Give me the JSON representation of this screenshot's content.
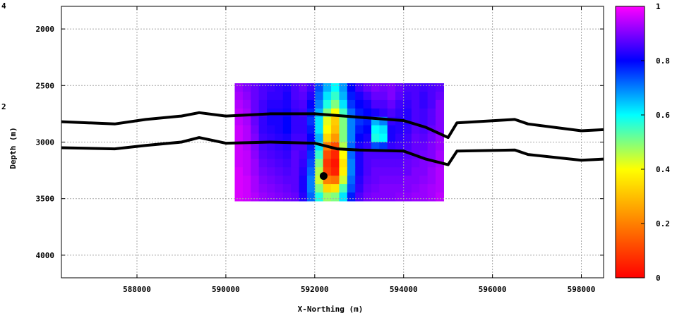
{
  "chart_data": {
    "type": "heatmap",
    "xlabel": "X-Northing (m)",
    "ylabel": "Depth (m)",
    "xlim": [
      586300,
      598500
    ],
    "ylim": [
      4200,
      1800
    ],
    "y_inverted": true,
    "x_ticks": [
      588000,
      590000,
      592000,
      594000,
      596000,
      598000
    ],
    "y_ticks": [
      2000,
      2500,
      3000,
      3500,
      4000
    ],
    "grid": true,
    "colorbar": {
      "min": 0,
      "max": 1,
      "ticks": [
        0,
        0.2,
        0.4,
        0.6,
        0.8,
        1
      ],
      "tick_labels": [
        "0",
        "0.2",
        "0.4",
        "0.6",
        "0.8",
        "1"
      ],
      "colors": [
        "#ff0000",
        "#ff8000",
        "#ffff00",
        "#00ffff",
        "#0000ff",
        "#ff00ff"
      ]
    },
    "left_edge_partial_labels": [
      "4",
      "2"
    ],
    "heatmap_extent": {
      "x": [
        590200,
        594900
      ],
      "y": [
        2480,
        3520
      ]
    },
    "heatmap_rows": [
      [
        0.92,
        0.9,
        0.88,
        0.86,
        0.85,
        0.84,
        0.83,
        0.86,
        0.88,
        0.85,
        0.74,
        0.66,
        0.6,
        0.68,
        0.8,
        0.85,
        0.88,
        0.9,
        0.89,
        0.9,
        0.88,
        0.86,
        0.86,
        0.85,
        0.86,
        0.87
      ],
      [
        0.93,
        0.91,
        0.88,
        0.86,
        0.84,
        0.84,
        0.82,
        0.86,
        0.87,
        0.83,
        0.72,
        0.62,
        0.56,
        0.66,
        0.78,
        0.82,
        0.85,
        0.88,
        0.88,
        0.9,
        0.87,
        0.85,
        0.86,
        0.84,
        0.86,
        0.88
      ],
      [
        0.94,
        0.92,
        0.88,
        0.85,
        0.83,
        0.83,
        0.82,
        0.85,
        0.86,
        0.8,
        0.7,
        0.58,
        0.5,
        0.62,
        0.76,
        0.8,
        0.82,
        0.86,
        0.86,
        0.88,
        0.85,
        0.84,
        0.86,
        0.84,
        0.86,
        0.9
      ],
      [
        0.95,
        0.93,
        0.88,
        0.85,
        0.82,
        0.82,
        0.81,
        0.84,
        0.85,
        0.78,
        0.66,
        0.5,
        0.4,
        0.55,
        0.72,
        0.78,
        0.8,
        0.82,
        0.84,
        0.86,
        0.84,
        0.83,
        0.86,
        0.85,
        0.87,
        0.9
      ],
      [
        0.95,
        0.93,
        0.88,
        0.84,
        0.82,
        0.82,
        0.8,
        0.84,
        0.84,
        0.76,
        0.62,
        0.42,
        0.32,
        0.5,
        0.7,
        0.76,
        0.78,
        0.66,
        0.7,
        0.84,
        0.83,
        0.83,
        0.86,
        0.85,
        0.87,
        0.9
      ],
      [
        0.96,
        0.94,
        0.89,
        0.84,
        0.83,
        0.82,
        0.8,
        0.84,
        0.84,
        0.78,
        0.62,
        0.4,
        0.3,
        0.5,
        0.7,
        0.78,
        0.8,
        0.6,
        0.62,
        0.82,
        0.83,
        0.84,
        0.87,
        0.86,
        0.88,
        0.9
      ],
      [
        0.96,
        0.94,
        0.9,
        0.85,
        0.84,
        0.83,
        0.82,
        0.85,
        0.85,
        0.8,
        0.66,
        0.34,
        0.24,
        0.5,
        0.7,
        0.8,
        0.82,
        0.58,
        0.6,
        0.82,
        0.84,
        0.85,
        0.88,
        0.87,
        0.89,
        0.92
      ],
      [
        0.96,
        0.94,
        0.9,
        0.86,
        0.85,
        0.84,
        0.83,
        0.86,
        0.86,
        0.78,
        0.62,
        0.2,
        0.12,
        0.46,
        0.72,
        0.82,
        0.84,
        0.74,
        0.76,
        0.84,
        0.85,
        0.86,
        0.88,
        0.88,
        0.9,
        0.92
      ],
      [
        0.96,
        0.95,
        0.91,
        0.87,
        0.86,
        0.85,
        0.84,
        0.87,
        0.85,
        0.76,
        0.56,
        0.12,
        0.06,
        0.4,
        0.72,
        0.82,
        0.86,
        0.86,
        0.86,
        0.86,
        0.86,
        0.87,
        0.88,
        0.89,
        0.9,
        0.93
      ],
      [
        0.96,
        0.95,
        0.92,
        0.88,
        0.87,
        0.86,
        0.85,
        0.87,
        0.84,
        0.74,
        0.5,
        0.08,
        0.03,
        0.36,
        0.7,
        0.82,
        0.86,
        0.87,
        0.87,
        0.87,
        0.87,
        0.88,
        0.89,
        0.9,
        0.91,
        0.93
      ],
      [
        0.97,
        0.95,
        0.92,
        0.89,
        0.88,
        0.87,
        0.86,
        0.87,
        0.83,
        0.72,
        0.46,
        0.1,
        0.05,
        0.38,
        0.7,
        0.82,
        0.86,
        0.88,
        0.88,
        0.88,
        0.88,
        0.88,
        0.9,
        0.9,
        0.92,
        0.94
      ],
      [
        0.97,
        0.96,
        0.93,
        0.9,
        0.89,
        0.88,
        0.87,
        0.87,
        0.82,
        0.7,
        0.44,
        0.2,
        0.18,
        0.44,
        0.72,
        0.83,
        0.87,
        0.88,
        0.89,
        0.89,
        0.89,
        0.9,
        0.9,
        0.91,
        0.92,
        0.94
      ],
      [
        0.97,
        0.96,
        0.93,
        0.91,
        0.9,
        0.89,
        0.88,
        0.87,
        0.82,
        0.7,
        0.5,
        0.34,
        0.36,
        0.54,
        0.74,
        0.84,
        0.88,
        0.89,
        0.9,
        0.9,
        0.9,
        0.9,
        0.91,
        0.92,
        0.93,
        0.94
      ],
      [
        0.97,
        0.96,
        0.94,
        0.92,
        0.91,
        0.9,
        0.89,
        0.88,
        0.83,
        0.72,
        0.58,
        0.48,
        0.5,
        0.62,
        0.78,
        0.86,
        0.89,
        0.9,
        0.9,
        0.9,
        0.91,
        0.91,
        0.92,
        0.92,
        0.93,
        0.95
      ]
    ],
    "horizons": [
      [
        [
          586300,
          2820
        ],
        [
          587500,
          2840
        ],
        [
          588200,
          2800
        ],
        [
          589000,
          2770
        ],
        [
          589400,
          2740
        ],
        [
          590000,
          2770
        ],
        [
          591000,
          2750
        ],
        [
          592000,
          2750
        ],
        [
          593000,
          2780
        ],
        [
          594000,
          2810
        ],
        [
          594500,
          2870
        ],
        [
          595000,
          2960
        ],
        [
          595200,
          2830
        ],
        [
          596500,
          2800
        ],
        [
          596800,
          2840
        ],
        [
          598000,
          2900
        ],
        [
          598500,
          2890
        ]
      ],
      [
        [
          586300,
          3050
        ],
        [
          587500,
          3060
        ],
        [
          588200,
          3030
        ],
        [
          589000,
          3000
        ],
        [
          589400,
          2960
        ],
        [
          590000,
          3010
        ],
        [
          591000,
          3000
        ],
        [
          592000,
          3010
        ],
        [
          592500,
          3060
        ],
        [
          593000,
          3070
        ],
        [
          594000,
          3080
        ],
        [
          594500,
          3150
        ],
        [
          595000,
          3200
        ],
        [
          595200,
          3080
        ],
        [
          596500,
          3070
        ],
        [
          596800,
          3110
        ],
        [
          598000,
          3160
        ],
        [
          598500,
          3150
        ]
      ]
    ],
    "marker": {
      "x": 592200,
      "y": 3300
    }
  }
}
